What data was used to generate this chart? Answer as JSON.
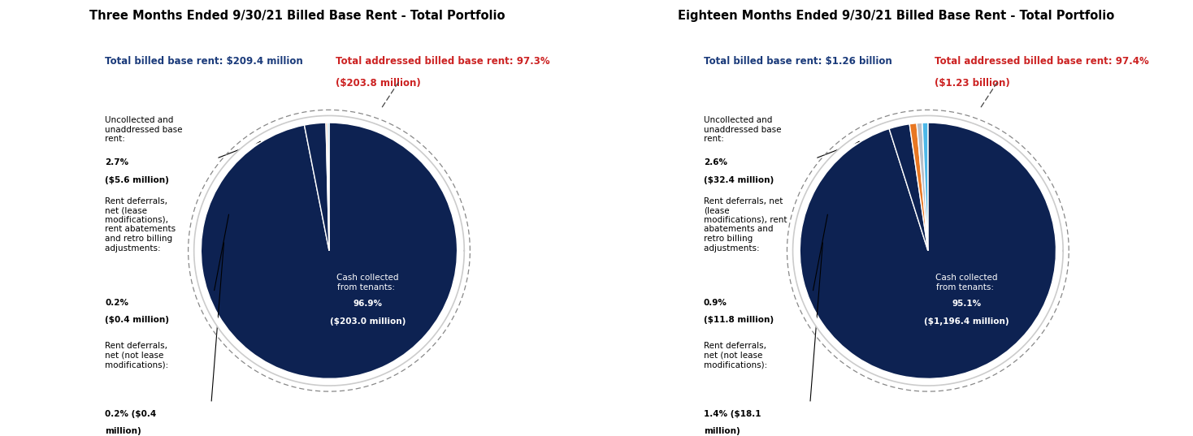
{
  "chart1": {
    "title": "Three Months Ended 9/30/21 Billed Base Rent - Total Portfolio",
    "total_label": "Total billed base rent: $209.4 million",
    "addressed_line1": "Total addressed billed base rent: 97.3%",
    "addressed_line2": "($203.8 million)",
    "slices": [
      96.9,
      2.7,
      0.2,
      0.2
    ],
    "slice_colors": [
      "#0d2252",
      "#0d2252",
      "#e87722",
      "#7ec8e3"
    ],
    "cash_text": "Cash collected\nfrom tenants: ",
    "cash_pct": "96.9%",
    "cash_amt": "($203.0 million)",
    "uncollected_text": "Uncollected and\nunaddressed base\nrent: ",
    "uncollected_pct": "2.7%",
    "uncollected_amt": "($5.6 million)",
    "orange_text": "Rent deferrals,\nnet (lease\nmodifications),\nrent abatements\nand retro billing\nadjustments: ",
    "orange_pct": "0.2%",
    "orange_amt": "($0.4 million)",
    "blue_text": "Rent deferrals,\nnet (not lease\nmodifications):\n",
    "blue_pct": "0.2% ($0.4",
    "blue_amt": "million)"
  },
  "chart2": {
    "title": "Eighteen Months Ended 9/30/21 Billed Base Rent - Total Portfolio",
    "total_label": "Total billed base rent: $1.26 billion",
    "addressed_line1": "Total addressed billed base rent: 97.4%",
    "addressed_line2": "($1.23 billion)",
    "slices": [
      95.1,
      2.6,
      0.9,
      0.7,
      0.7
    ],
    "slice_colors": [
      "#0d2252",
      "#0d2252",
      "#e87722",
      "#b8bfc8",
      "#4db8e8"
    ],
    "cash_text": "Cash collected\nfrom tenants: ",
    "cash_pct": "95.1%",
    "cash_amt": "($1,196.4 million)",
    "uncollected_text": "Uncollected and\nunaddressed base\nrent: ",
    "uncollected_pct": "2.6%",
    "uncollected_amt": "($32.4 million)",
    "orange_text": "Rent deferrals, net\n(lease\nmodifications), rent\nabatements and\nretro billing\nadjustments: ",
    "orange_pct": "0.9%",
    "orange_amt": "($11.8 million)",
    "blue_text": "Rent deferrals,\nnet (not lease\nmodifications):\n",
    "blue_pct": "1.4% ($18.1",
    "blue_amt": "million)"
  },
  "bg_color": "#ffffff",
  "dark_navy": "#0d2252",
  "text_blue": "#1a3a7a",
  "text_red": "#cc2222",
  "label_fs": 7.5,
  "bold_fs": 8.5,
  "title_fs": 10.5
}
